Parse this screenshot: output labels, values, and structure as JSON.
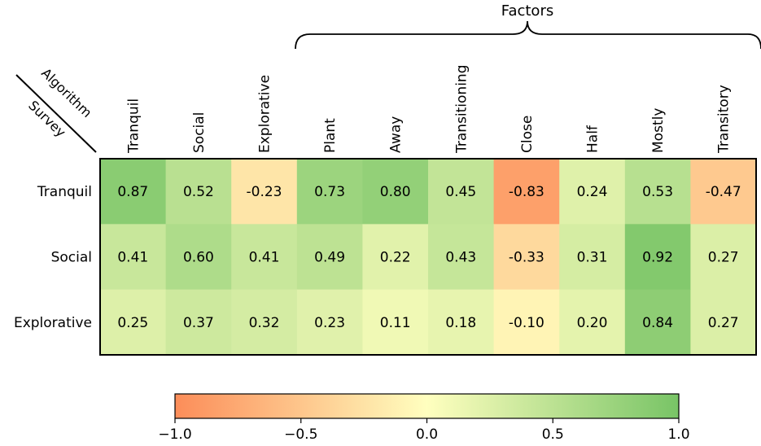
{
  "chart_data": {
    "type": "heatmap",
    "title": "Factors",
    "corner_labels": {
      "columns": "Algorithm",
      "rows": "Survey"
    },
    "columns": [
      "Tranquil",
      "Social",
      "Explorative",
      "Plant",
      "Away",
      "Transitioning",
      "Close",
      "Half",
      "Mostly",
      "Transitory"
    ],
    "rows": [
      "Tranquil",
      "Social",
      "Explorative"
    ],
    "values": [
      [
        0.87,
        0.52,
        -0.23,
        0.73,
        0.8,
        0.45,
        -0.83,
        0.24,
        0.53,
        -0.47
      ],
      [
        0.41,
        0.6,
        0.41,
        0.49,
        0.22,
        0.43,
        -0.33,
        0.31,
        0.92,
        0.27
      ],
      [
        0.25,
        0.37,
        0.32,
        0.23,
        0.11,
        0.18,
        -0.1,
        0.2,
        0.84,
        0.27
      ]
    ],
    "value_labels": [
      [
        "0.87",
        "0.52",
        "-0.23",
        "0.73",
        "0.80",
        "0.45",
        "-0.83",
        "0.24",
        "0.53",
        "-0.47"
      ],
      [
        "0.41",
        "0.60",
        "0.41",
        "0.49",
        "0.22",
        "0.43",
        "-0.33",
        "0.31",
        "0.92",
        "0.27"
      ],
      [
        "0.25",
        "0.37",
        "0.32",
        "0.23",
        "0.11",
        "0.18",
        "-0.10",
        "0.20",
        "0.84",
        "0.27"
      ]
    ],
    "factors_bracket_span": [
      "Plant",
      "Transitory"
    ],
    "colorbar": {
      "range": [
        -1.0,
        1.0
      ],
      "ticks": [
        -1.0,
        -0.5,
        0.0,
        0.5,
        1.0
      ],
      "tick_labels": [
        "−1.0",
        "−0.5",
        "0.0",
        "0.5",
        "1.0"
      ],
      "orientation": "horizontal",
      "colors": [
        "#fc8d59",
        "#ffffbf",
        "#78c466"
      ]
    }
  }
}
